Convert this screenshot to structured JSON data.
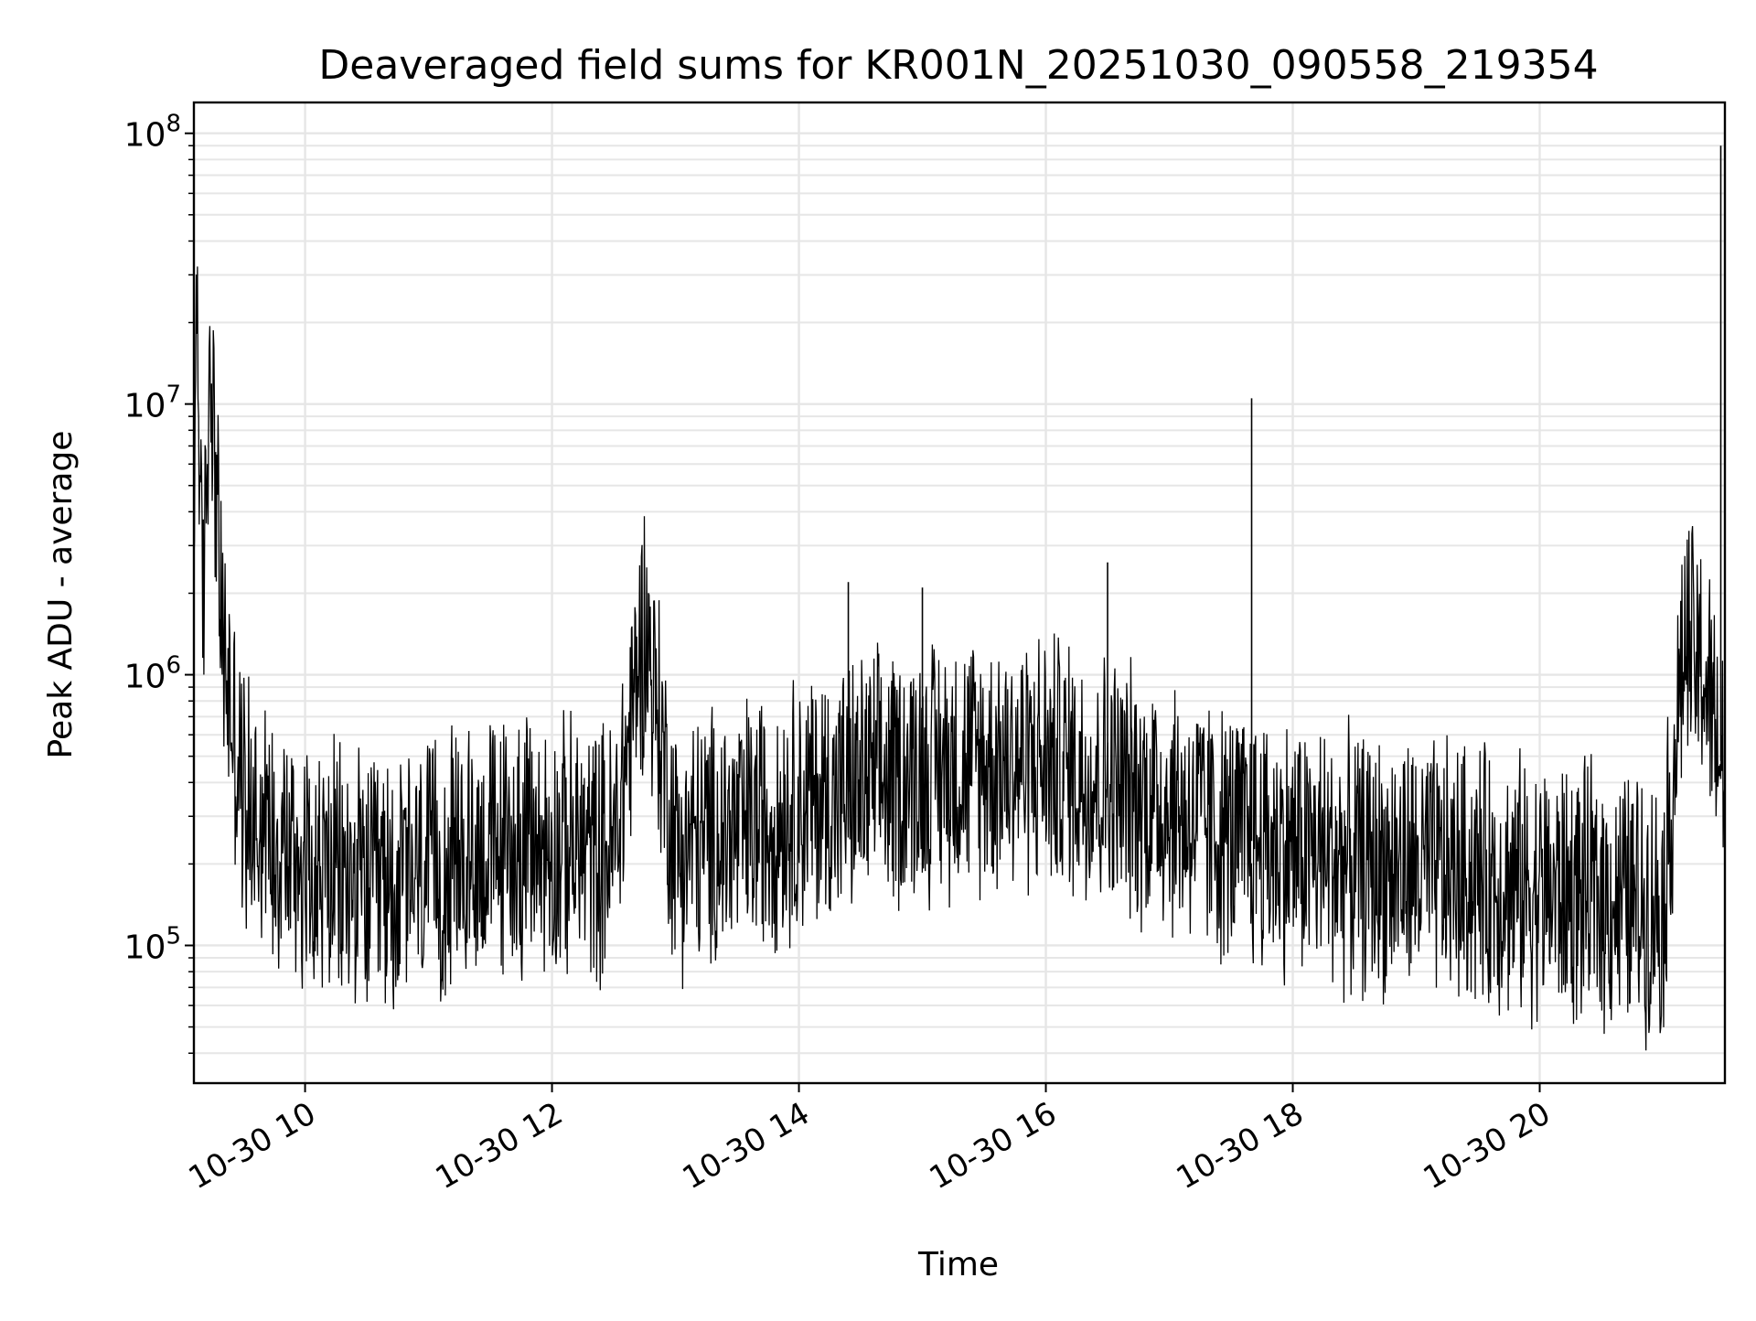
{
  "chart_data": {
    "type": "line",
    "title": "Deaveraged field sums for KR001N_20251030_090558_219354",
    "xlabel": "Time",
    "ylabel": "Peak ADU - average",
    "y_scale": "log",
    "ylim": [
      31000,
      130000000
    ],
    "xlim": [
      "2025-10-30 09:05:58",
      "2025-10-30 21:30:00"
    ],
    "x_tick_labels": [
      {
        "value": "2025-10-30 10:00",
        "label": "10-30 10"
      },
      {
        "value": "2025-10-30 12:00",
        "label": "10-30 12"
      },
      {
        "value": "2025-10-30 14:00",
        "label": "10-30 14"
      },
      {
        "value": "2025-10-30 16:00",
        "label": "10-30 16"
      },
      {
        "value": "2025-10-30 18:00",
        "label": "10-30 18"
      },
      {
        "value": "2025-10-30 20:00",
        "label": "10-30 20"
      }
    ],
    "y_tick_labels": [
      {
        "value": 100000,
        "base": "10",
        "exp": "5"
      },
      {
        "value": 1000000,
        "base": "10",
        "exp": "6"
      },
      {
        "value": 10000000,
        "base": "10",
        "exp": "7"
      },
      {
        "value": 100000000,
        "base": "10",
        "exp": "8"
      }
    ],
    "grid": true,
    "legend": "none",
    "line_color": "#000000",
    "grid_color": "#e6e6e6",
    "series": [
      {
        "values": [
          {
            "x": "2025-10-30 09:06",
            "y": 1100000
          },
          {
            "x": "2025-10-30 09:07",
            "y": 42000000
          },
          {
            "x": "2025-10-30 09:10",
            "y": 1500000
          },
          {
            "x": "2025-10-30 09:14",
            "y": 18000000
          },
          {
            "x": "2025-10-30 09:20",
            "y": 1200000
          },
          {
            "x": "2025-10-30 09:30",
            "y": 350000
          },
          {
            "x": "2025-10-30 10:00",
            "y": 200000
          },
          {
            "x": "2025-10-30 10:30",
            "y": 160000
          },
          {
            "x": "2025-10-30 11:00",
            "y": 180000
          },
          {
            "x": "2025-10-30 11:30",
            "y": 230000
          },
          {
            "x": "2025-10-30 12:00",
            "y": 230000
          },
          {
            "x": "2025-10-30 12:30",
            "y": 220000
          },
          {
            "x": "2025-10-30 12:45",
            "y": 1600000
          },
          {
            "x": "2025-10-30 13:00",
            "y": 230000
          },
          {
            "x": "2025-10-30 13:30",
            "y": 260000
          },
          {
            "x": "2025-10-30 14:00",
            "y": 330000
          },
          {
            "x": "2025-10-30 14:24",
            "y": 2200000
          },
          {
            "x": "2025-10-30 14:30",
            "y": 380000
          },
          {
            "x": "2025-10-30 15:00",
            "y": 450000
          },
          {
            "x": "2025-10-30 15:00",
            "y": 2100000
          },
          {
            "x": "2025-10-30 15:30",
            "y": 480000
          },
          {
            "x": "2025-10-30 16:00",
            "y": 480000
          },
          {
            "x": "2025-10-30 16:30",
            "y": 2600000
          },
          {
            "x": "2025-10-30 17:00",
            "y": 330000
          },
          {
            "x": "2025-10-30 17:30",
            "y": 250000
          },
          {
            "x": "2025-10-30 17:40",
            "y": 10500000
          },
          {
            "x": "2025-10-30 18:00",
            "y": 230000
          },
          {
            "x": "2025-10-30 18:30",
            "y": 200000
          },
          {
            "x": "2025-10-30 19:00",
            "y": 190000
          },
          {
            "x": "2025-10-30 19:30",
            "y": 180000
          },
          {
            "x": "2025-10-30 20:00",
            "y": 160000
          },
          {
            "x": "2025-10-30 20:30",
            "y": 150000
          },
          {
            "x": "2025-10-30 21:00",
            "y": 140000
          },
          {
            "x": "2025-10-30 21:10",
            "y": 1300000
          },
          {
            "x": "2025-10-30 21:20",
            "y": 1000000
          },
          {
            "x": "2025-10-30 21:28",
            "y": 90000000
          },
          {
            "x": "2025-10-30 21:30",
            "y": 400000
          }
        ]
      }
    ]
  }
}
